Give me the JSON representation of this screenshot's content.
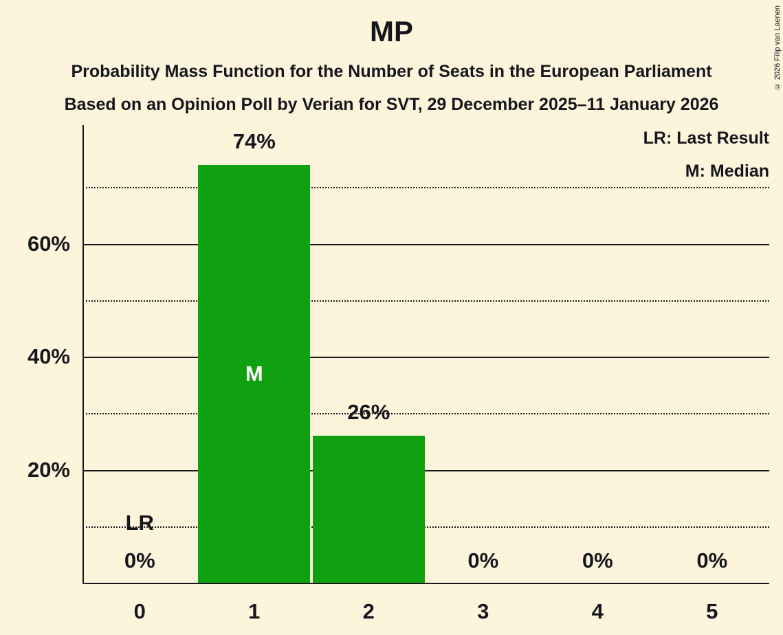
{
  "title": "MP",
  "subtitle1": "Probability Mass Function for the Number of Seats in the European Parliament",
  "subtitle2": "Based on an Opinion Poll by Verian for SVT, 29 December 2025–11 January 2026",
  "legend": {
    "lr": "LR: Last Result",
    "m": "M: Median"
  },
  "copyright": "© 2026 Filip van Laenen",
  "colors": {
    "background": "#FCF5DB",
    "bar": "#0FA00F",
    "text": "#16161D",
    "bar_marker_text": "#FFFFFF"
  },
  "chart_data": {
    "type": "bar",
    "title": "MP",
    "categories": [
      "0",
      "1",
      "2",
      "3",
      "4",
      "5"
    ],
    "values": [
      0,
      74,
      26,
      0,
      0,
      0
    ],
    "value_labels": [
      "0%",
      "74%",
      "26%",
      "0%",
      "0%",
      "0%"
    ],
    "median_category_index": 1,
    "median_marker": "M",
    "last_result_category_index": 0,
    "last_result_marker": "LR",
    "xlabel": "",
    "ylabel": "",
    "ylim": [
      0,
      81
    ],
    "ytick_values": [
      20,
      40,
      60
    ],
    "ytick_labels": [
      "20%",
      "40%",
      "60%"
    ],
    "solid_gridlines": [
      20,
      40,
      60
    ],
    "dotted_gridlines": [
      10,
      30,
      50,
      70
    ],
    "legend_position": "top-right",
    "grid": "horizontal"
  }
}
